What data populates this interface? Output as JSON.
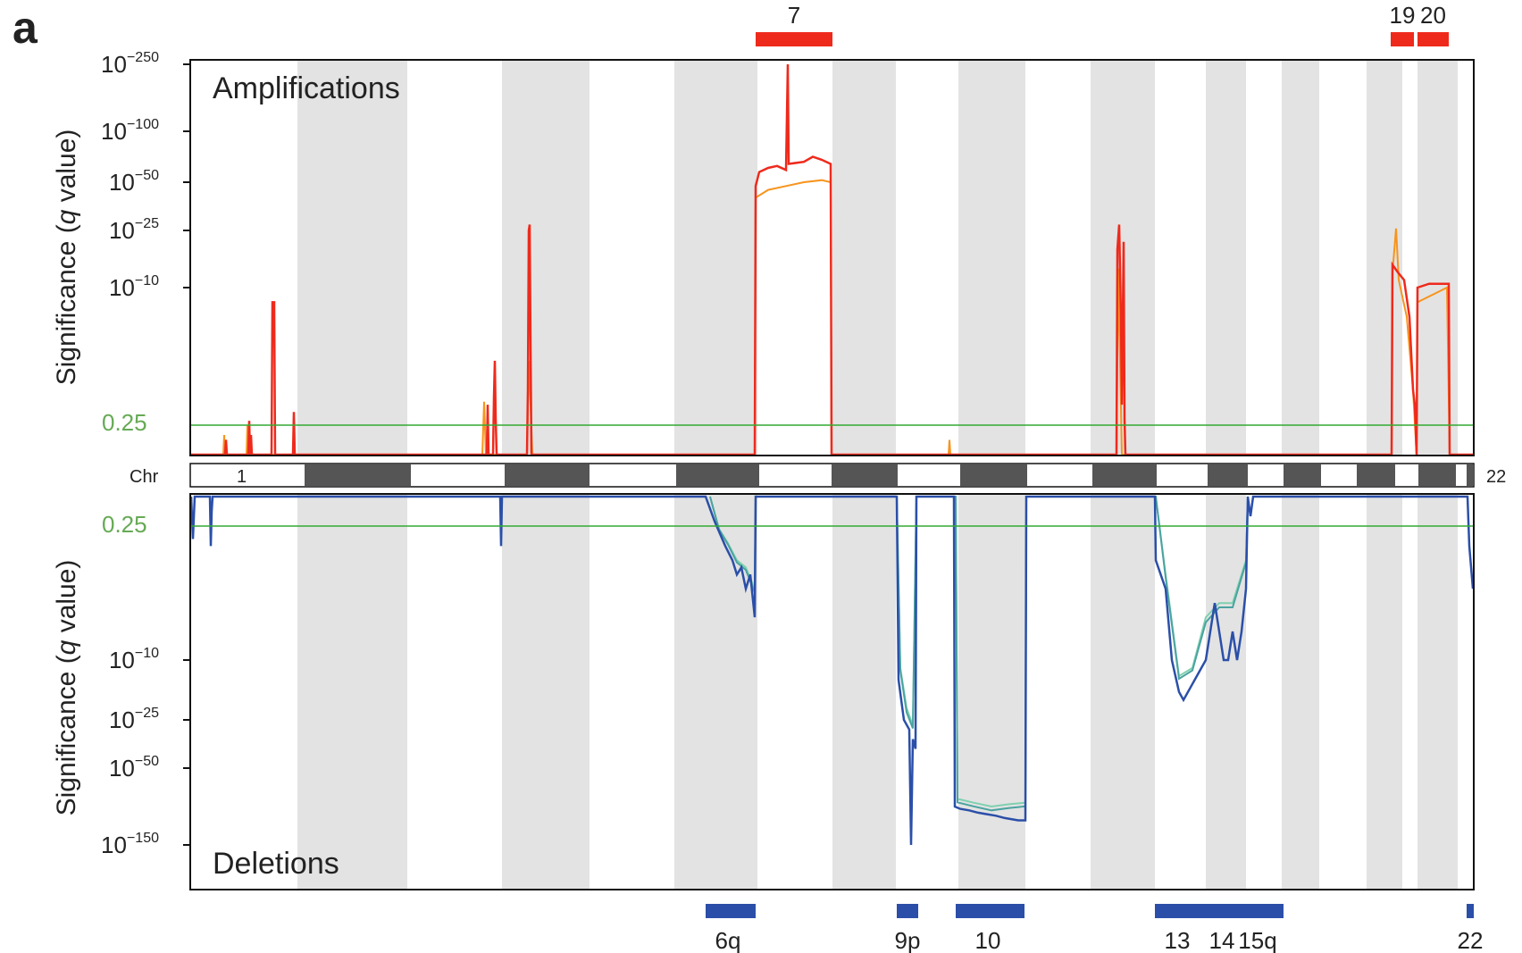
{
  "panel_label": "a",
  "chart_data": [
    {
      "type": "line",
      "title": "Amplifications",
      "ylabel_prefix": "Significance (",
      "ylabel_italic": "q",
      "ylabel_suffix": " value)",
      "ylabel": "Significance (q value)",
      "y_scale": "log",
      "y_ticks": [
        {
          "base": "10",
          "exp": "−250",
          "log": -250
        },
        {
          "base": "10",
          "exp": "−100",
          "log": -100
        },
        {
          "base": "10",
          "exp": "−50",
          "log": -50
        },
        {
          "base": "10",
          "exp": "−25",
          "log": -25
        },
        {
          "base": "10",
          "exp": "−10",
          "log": -10
        }
      ],
      "threshold": {
        "label": "0.25",
        "q": 0.25,
        "color": "#33aa33"
      },
      "x_axis": "chromosome position (chr 1–22)",
      "series_colors": [
        "#ee2a1c",
        "#f7941d"
      ],
      "significant_regions": [
        {
          "label": "7",
          "chr_start": 7,
          "chr_end": 7
        },
        {
          "label": "19",
          "chr_start": 19,
          "chr_end": 19
        },
        {
          "label": "20",
          "chr_start": 20,
          "chr_end": 20
        }
      ],
      "peaks": [
        {
          "chr": 1,
          "approx_log10_q": -2,
          "note": "small peaks"
        },
        {
          "chr": 1,
          "approx_log10_q": -12
        },
        {
          "chr": 3,
          "approx_log10_q": -30
        },
        {
          "chr": 7,
          "approx_log10_q": -250,
          "plateau_log10_q": -70
        },
        {
          "chr": 12,
          "approx_log10_q": -28
        },
        {
          "chr": 19,
          "approx_log10_q": -30
        },
        {
          "chr": 20,
          "approx_log10_q": -12
        }
      ]
    },
    {
      "type": "line",
      "title": "Deletions",
      "ylabel_prefix": "Significance (",
      "ylabel_italic": "q",
      "ylabel_suffix": " value)",
      "ylabel": "Significance (q value)",
      "y_scale": "log",
      "y_ticks": [
        {
          "base": "10",
          "exp": "−10",
          "log": -10
        },
        {
          "base": "10",
          "exp": "−25",
          "log": -25
        },
        {
          "base": "10",
          "exp": "−50",
          "log": -50
        },
        {
          "base": "10",
          "exp": "−150",
          "log": -150
        }
      ],
      "threshold": {
        "label": "0.25",
        "q": 0.25,
        "color": "#33aa33"
      },
      "series_colors": [
        "#2b4fa8",
        "#4aa3a0",
        "#7fd0b0"
      ],
      "significant_regions": [
        {
          "label": "6q",
          "chr": 6
        },
        {
          "label": "9p",
          "chr": 9
        },
        {
          "label": "10",
          "chr": 10
        },
        {
          "label": "13",
          "chr": 13
        },
        {
          "label": "14",
          "chr": 14
        },
        {
          "label": "15q",
          "chr": 15
        },
        {
          "label": "22",
          "chr": 22
        }
      ],
      "troughs": [
        {
          "chr": "6q",
          "approx_log10_q": -5
        },
        {
          "chr": "9p",
          "approx_log10_q": -150
        },
        {
          "chr": "10",
          "approx_log10_q": -110
        },
        {
          "chr": "13",
          "approx_log10_q": -20
        },
        {
          "chr": "14",
          "approx_log10_q": -8
        },
        {
          "chr": "22",
          "approx_log10_q": -5
        }
      ]
    }
  ],
  "chromosome_bar": {
    "label": "Chr",
    "first_label": "1",
    "last_label": "22"
  }
}
